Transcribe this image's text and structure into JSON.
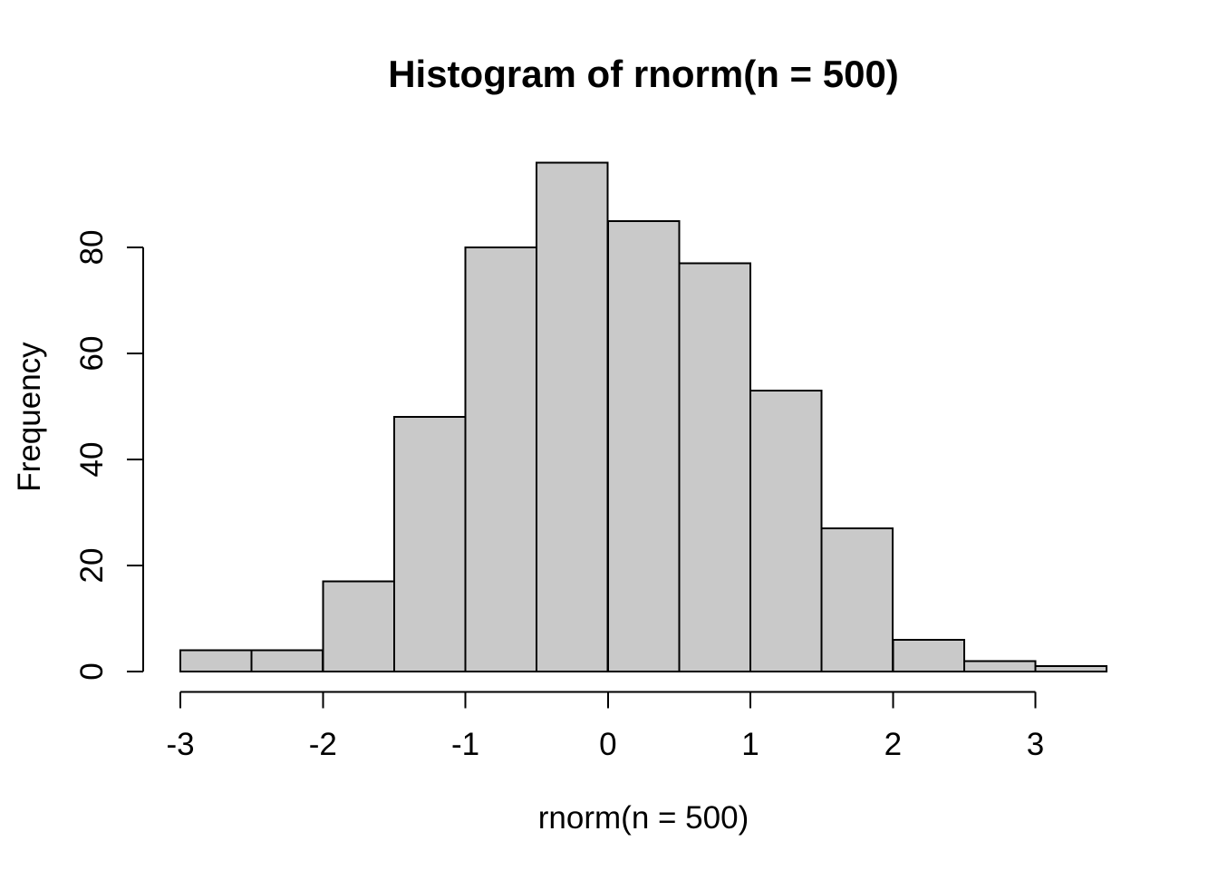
{
  "chart_data": {
    "type": "bar",
    "subtype": "histogram",
    "title": "Histogram of rnorm(n = 500)",
    "xlabel": "rnorm(n = 500)",
    "ylabel": "Frequency",
    "breaks": [
      -3,
      -2.5,
      -2,
      -1.5,
      -1,
      -0.5,
      0,
      0.5,
      1,
      1.5,
      2,
      2.5,
      3,
      3.5
    ],
    "counts": [
      4,
      4,
      17,
      48,
      80,
      96,
      85,
      77,
      53,
      27,
      6,
      2,
      1
    ],
    "total_n": 500,
    "x_ticks": [
      -3,
      -2,
      -1,
      0,
      1,
      2,
      3
    ],
    "y_ticks": [
      0,
      20,
      40,
      60,
      80
    ],
    "xlim": [
      -3.26,
      3.76
    ],
    "ylim": [
      -3.84,
      99.84
    ],
    "grid": false,
    "legend": "none",
    "bar_fill": "#c9c9c9",
    "stroke_color": "#000000",
    "background": "#ffffff"
  }
}
